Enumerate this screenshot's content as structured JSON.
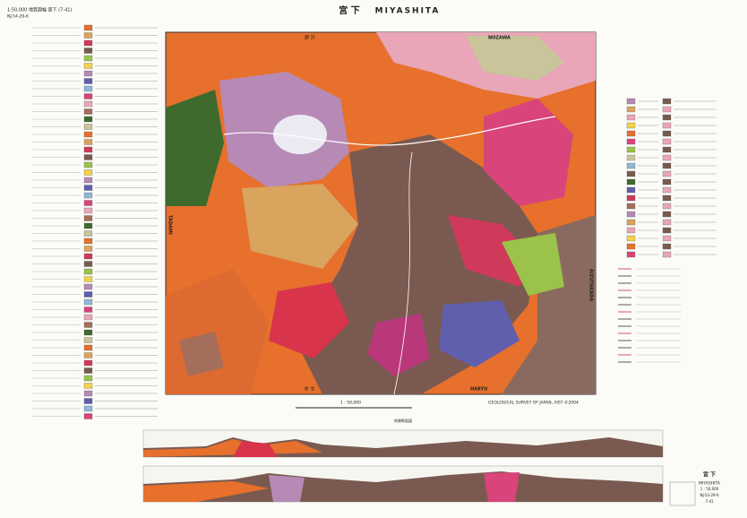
{
  "header": {
    "series_title": "1:50,000 地質図幅 宮下 (7-41)",
    "sheet_code": "NJ-54-29-6",
    "title_ja": "宮 下",
    "title_en": "MIYASHITA"
  },
  "map": {
    "north": "野 沢",
    "north_en": "NOZAWA",
    "south": "針 生",
    "south_en": "HARYU",
    "west_en": "TADAMI",
    "east_en": "AIZUTAKADA",
    "scale": "1 : 50,000"
  },
  "footer": {
    "publisher": "GEOLOGICAL SURVEY OF JAPAN, AIST ©2004",
    "sections": "地質断面図",
    "corner_title_ja": "宮 下",
    "corner_title_en": "MIYASHITA",
    "corner_scale": "1 : 50,000",
    "corner_code": "NJ-54-29-6",
    "corner_number": "7-41"
  }
}
